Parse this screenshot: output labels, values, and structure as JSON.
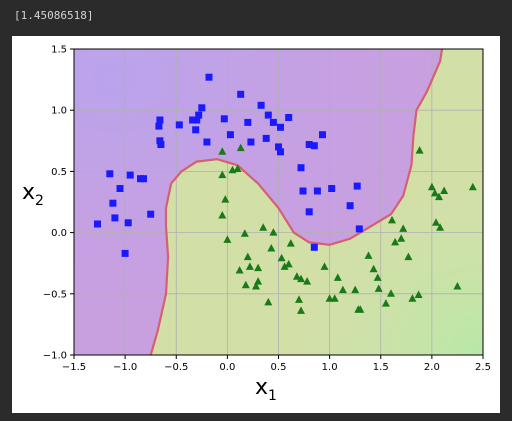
{
  "cell_output": "[1.45086518]",
  "chart_data": {
    "type": "scatter",
    "title": "",
    "xlabel": "x",
    "xlabel_sub": "1",
    "ylabel": "x",
    "ylabel_sub": "2",
    "xlim": [
      -1.5,
      2.5
    ],
    "ylim": [
      -1.0,
      1.5
    ],
    "xticks": [
      "−1.5",
      "−1.0",
      "−0.5",
      "0.0",
      "0.5",
      "1.0",
      "1.5",
      "2.0",
      "2.5"
    ],
    "yticks": [
      "−1.0",
      "−0.5",
      "0.0",
      "0.5",
      "1.0",
      "1.5"
    ],
    "xtick_values": [
      -1.5,
      -1.0,
      -0.5,
      0.0,
      0.5,
      1.0,
      1.5,
      2.0,
      2.5
    ],
    "ytick_values": [
      -1.0,
      -0.5,
      0.0,
      0.5,
      1.0,
      1.5
    ],
    "grid": true,
    "region_colors": {
      "class0": "#c8a0e0",
      "class1": "#d2e0a8",
      "boundary": "#d46070"
    },
    "decision_boundary": [
      [
        -0.75,
        -1.0
      ],
      [
        -0.68,
        -0.8
      ],
      [
        -0.6,
        -0.5
      ],
      [
        -0.58,
        -0.2
      ],
      [
        -0.6,
        0.05
      ],
      [
        -0.6,
        0.2
      ],
      [
        -0.55,
        0.4
      ],
      [
        -0.45,
        0.5
      ],
      [
        -0.3,
        0.58
      ],
      [
        -0.1,
        0.6
      ],
      [
        0.1,
        0.55
      ],
      [
        0.3,
        0.4
      ],
      [
        0.5,
        0.2
      ],
      [
        0.65,
        0.0
      ],
      [
        0.8,
        -0.08
      ],
      [
        1.0,
        -0.1
      ],
      [
        1.2,
        -0.05
      ],
      [
        1.4,
        0.05
      ],
      [
        1.6,
        0.15
      ],
      [
        1.72,
        0.3
      ],
      [
        1.8,
        0.55
      ],
      [
        1.82,
        0.8
      ],
      [
        1.85,
        1.0
      ],
      [
        1.95,
        1.15
      ],
      [
        2.08,
        1.4
      ],
      [
        2.1,
        1.5
      ]
    ],
    "series": [
      {
        "marker": "square",
        "color": "#1a1aff",
        "points": [
          [
            -1.27,
            0.07
          ],
          [
            -1.15,
            0.48
          ],
          [
            -1.12,
            0.24
          ],
          [
            -1.1,
            0.12
          ],
          [
            -1.05,
            0.36
          ],
          [
            -1.0,
            -0.17
          ],
          [
            -0.97,
            0.08
          ],
          [
            -0.95,
            0.47
          ],
          [
            -0.85,
            0.44
          ],
          [
            -0.82,
            0.44
          ],
          [
            -0.75,
            0.15
          ],
          [
            -0.67,
            0.87
          ],
          [
            -0.66,
            0.92
          ],
          [
            -0.65,
            0.72
          ],
          [
            -0.66,
            0.75
          ],
          [
            -0.47,
            0.88
          ],
          [
            -0.34,
            0.92
          ],
          [
            -0.3,
            0.92
          ],
          [
            -0.31,
            0.84
          ],
          [
            -0.28,
            0.96
          ],
          [
            -0.25,
            1.02
          ],
          [
            -0.2,
            0.74
          ],
          [
            -0.18,
            1.27
          ],
          [
            -0.03,
            0.93
          ],
          [
            0.03,
            0.8
          ],
          [
            0.13,
            1.13
          ],
          [
            0.2,
            0.9
          ],
          [
            0.23,
            0.74
          ],
          [
            0.33,
            1.04
          ],
          [
            0.38,
            0.77
          ],
          [
            0.4,
            0.96
          ],
          [
            0.45,
            0.9
          ],
          [
            0.5,
            0.7
          ],
          [
            0.52,
            0.66
          ],
          [
            0.52,
            0.86
          ],
          [
            0.6,
            0.94
          ],
          [
            0.72,
            0.53
          ],
          [
            0.74,
            0.34
          ],
          [
            0.8,
            0.72
          ],
          [
            0.8,
            0.17
          ],
          [
            0.88,
            0.34
          ],
          [
            0.85,
            0.71
          ],
          [
            0.93,
            0.8
          ],
          [
            1.02,
            0.36
          ],
          [
            1.2,
            0.22
          ],
          [
            1.27,
            0.38
          ],
          [
            1.29,
            0.03
          ],
          [
            0.85,
            -0.12
          ]
        ]
      },
      {
        "marker": "triangle",
        "color": "#1a7a1a",
        "points": [
          [
            -0.05,
            0.66
          ],
          [
            0.05,
            0.51
          ],
          [
            0.1,
            0.52
          ],
          [
            0.13,
            0.69
          ],
          [
            -0.05,
            0.47
          ],
          [
            -0.02,
            0.27
          ],
          [
            -0.05,
            0.14
          ],
          [
            0.0,
            -0.06
          ],
          [
            0.17,
            -0.01
          ],
          [
            0.2,
            -0.2
          ],
          [
            0.12,
            -0.31
          ],
          [
            0.18,
            -0.43
          ],
          [
            0.22,
            -0.28
          ],
          [
            0.28,
            -0.44
          ],
          [
            0.3,
            -0.4
          ],
          [
            0.3,
            -0.29
          ],
          [
            0.35,
            0.04
          ],
          [
            0.4,
            -0.57
          ],
          [
            0.43,
            -0.13
          ],
          [
            0.45,
            0.0
          ],
          [
            0.53,
            -0.21
          ],
          [
            0.56,
            -0.28
          ],
          [
            0.6,
            -0.26
          ],
          [
            0.68,
            -0.36
          ],
          [
            0.7,
            -0.55
          ],
          [
            0.72,
            -0.64
          ],
          [
            0.78,
            -0.4
          ],
          [
            0.95,
            -0.28
          ],
          [
            1.0,
            -0.54
          ],
          [
            1.05,
            -0.54
          ],
          [
            1.08,
            -0.37
          ],
          [
            1.13,
            -0.47
          ],
          [
            1.25,
            -0.47
          ],
          [
            1.3,
            -0.63
          ],
          [
            1.38,
            -0.19
          ],
          [
            1.43,
            -0.3
          ],
          [
            1.47,
            -0.37
          ],
          [
            1.48,
            -0.46
          ],
          [
            1.55,
            -0.58
          ],
          [
            1.6,
            -0.5
          ],
          [
            1.61,
            0.1
          ],
          [
            1.64,
            -0.08
          ],
          [
            1.7,
            -0.05
          ],
          [
            1.72,
            0.03
          ],
          [
            1.77,
            -0.2
          ],
          [
            1.81,
            -0.54
          ],
          [
            1.87,
            -0.51
          ],
          [
            1.88,
            0.67
          ],
          [
            2.0,
            0.37
          ],
          [
            2.03,
            0.32
          ],
          [
            2.04,
            0.08
          ],
          [
            2.08,
            0.04
          ],
          [
            2.07,
            0.29
          ],
          [
            2.12,
            0.34
          ],
          [
            2.25,
            -0.44
          ],
          [
            2.4,
            0.37
          ],
          [
            1.28,
            -0.63
          ],
          [
            0.62,
            -0.09
          ],
          [
            0.72,
            -0.38
          ]
        ]
      }
    ]
  }
}
